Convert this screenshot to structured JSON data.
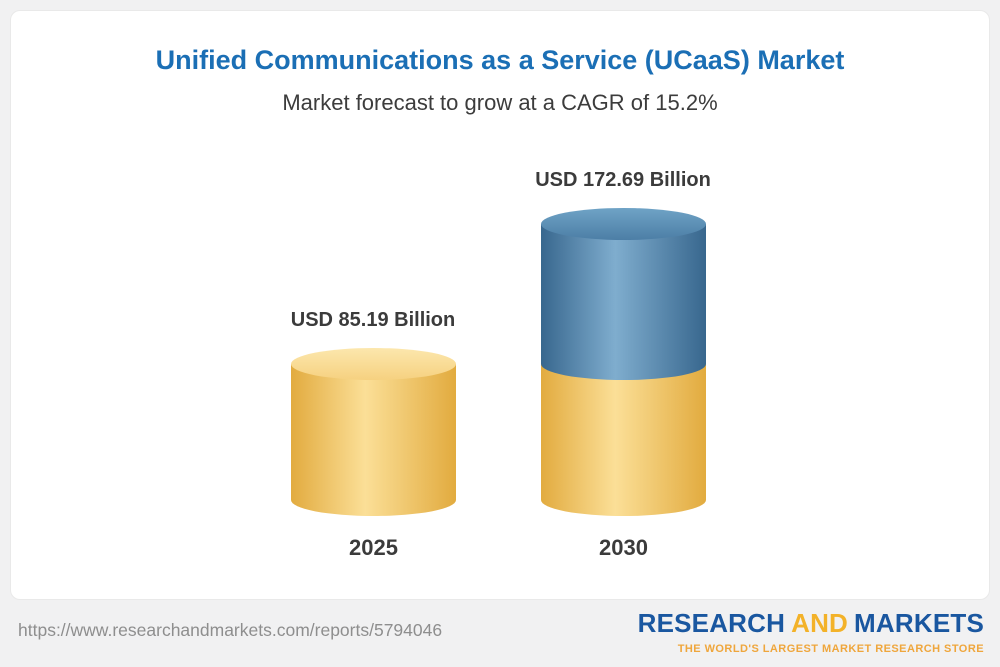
{
  "header": {
    "title": "Unified Communications as a Service (UCaaS) Market",
    "subtitle": "Market forecast to grow at a CAGR of 15.2%"
  },
  "chart_data": {
    "type": "bar",
    "title": "Unified Communications as a Service (UCaaS) Market",
    "subtitle": "Market forecast to grow at a CAGR of 15.2%",
    "cagr_percent": 15.2,
    "unit": "USD Billion",
    "categories": [
      "2025",
      "2030"
    ],
    "values": [
      85.19,
      172.69
    ],
    "value_labels": [
      "USD 85.19 Billion",
      "USD 172.69 Billion"
    ],
    "ylim": [
      0,
      172.69
    ],
    "grid": false,
    "legend": false,
    "bars": [
      {
        "category": "2025",
        "value": 85.19,
        "label": "USD 85.19 Billion",
        "segments": [
          {
            "name": "base-2025",
            "value": 85.19,
            "color": "yellow"
          }
        ]
      },
      {
        "category": "2030",
        "value": 172.69,
        "label": "USD 172.69 Billion",
        "segments": [
          {
            "name": "base-portion",
            "value": 85.19,
            "color": "yellow"
          },
          {
            "name": "growth-portion",
            "value": 87.5,
            "color": "blue"
          }
        ]
      }
    ],
    "colors": {
      "title_blue": "#1b6fb5",
      "bar_yellow": "#f0c75e",
      "bar_blue": "#4e82a9",
      "text_dark": "#3b3b3b"
    }
  },
  "footer": {
    "report_url": "https://www.researchandmarkets.com/reports/5794046",
    "logo": {
      "word1": "RESEARCH",
      "word2": "AND",
      "word3": "MARKETS",
      "tagline": "THE WORLD'S LARGEST MARKET RESEARCH STORE",
      "blue": "#1a57a0",
      "gold": "#f3b229"
    }
  }
}
